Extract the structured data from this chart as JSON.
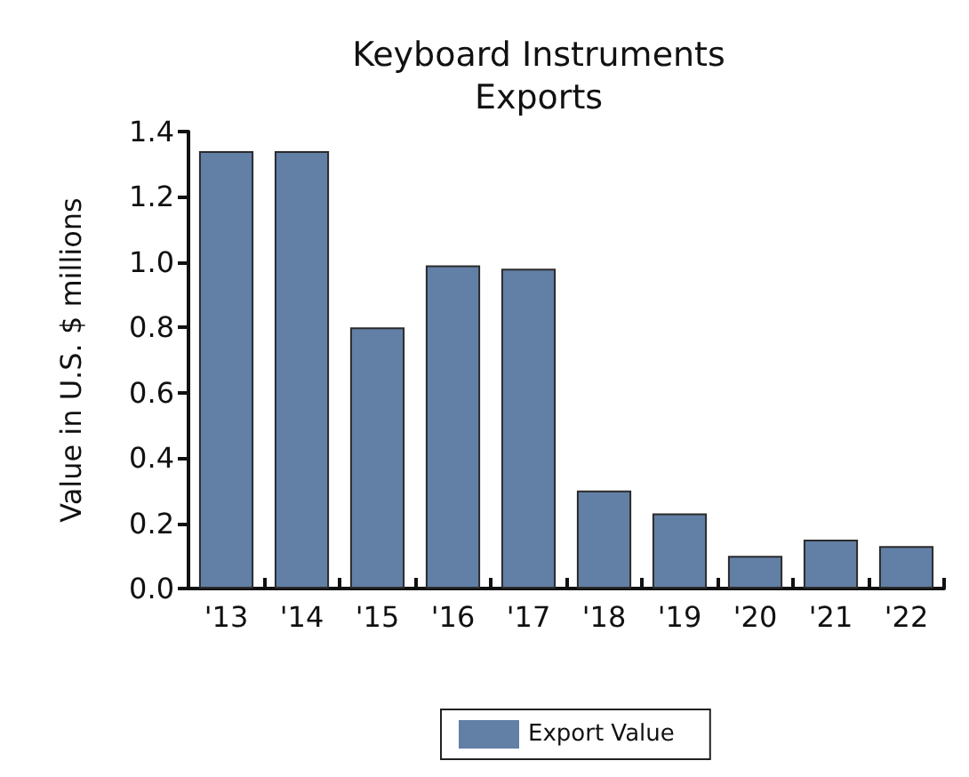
{
  "chart_data": {
    "type": "bar",
    "title": "Keyboard Instruments\nExports",
    "ylabel": "Value in U.S. $ millions",
    "categories": [
      "'13",
      "'14",
      "'15",
      "'16",
      "'17",
      "'18",
      "'19",
      "'20",
      "'21",
      "'22"
    ],
    "series": [
      {
        "name": "Export Value",
        "color": "#627fa6",
        "values": [
          1.34,
          1.34,
          0.8,
          0.99,
          0.98,
          0.3,
          0.23,
          0.1,
          0.15,
          0.13
        ]
      }
    ],
    "ylim": [
      0,
      1.4
    ],
    "yticks": [
      {
        "value": 0,
        "label": "0.0"
      },
      0.2,
      0.4,
      0.6,
      0.8,
      {
        "value": 1,
        "label": "1.0"
      },
      1.2,
      1.4
    ],
    "grid": false,
    "legend": "bottom"
  }
}
